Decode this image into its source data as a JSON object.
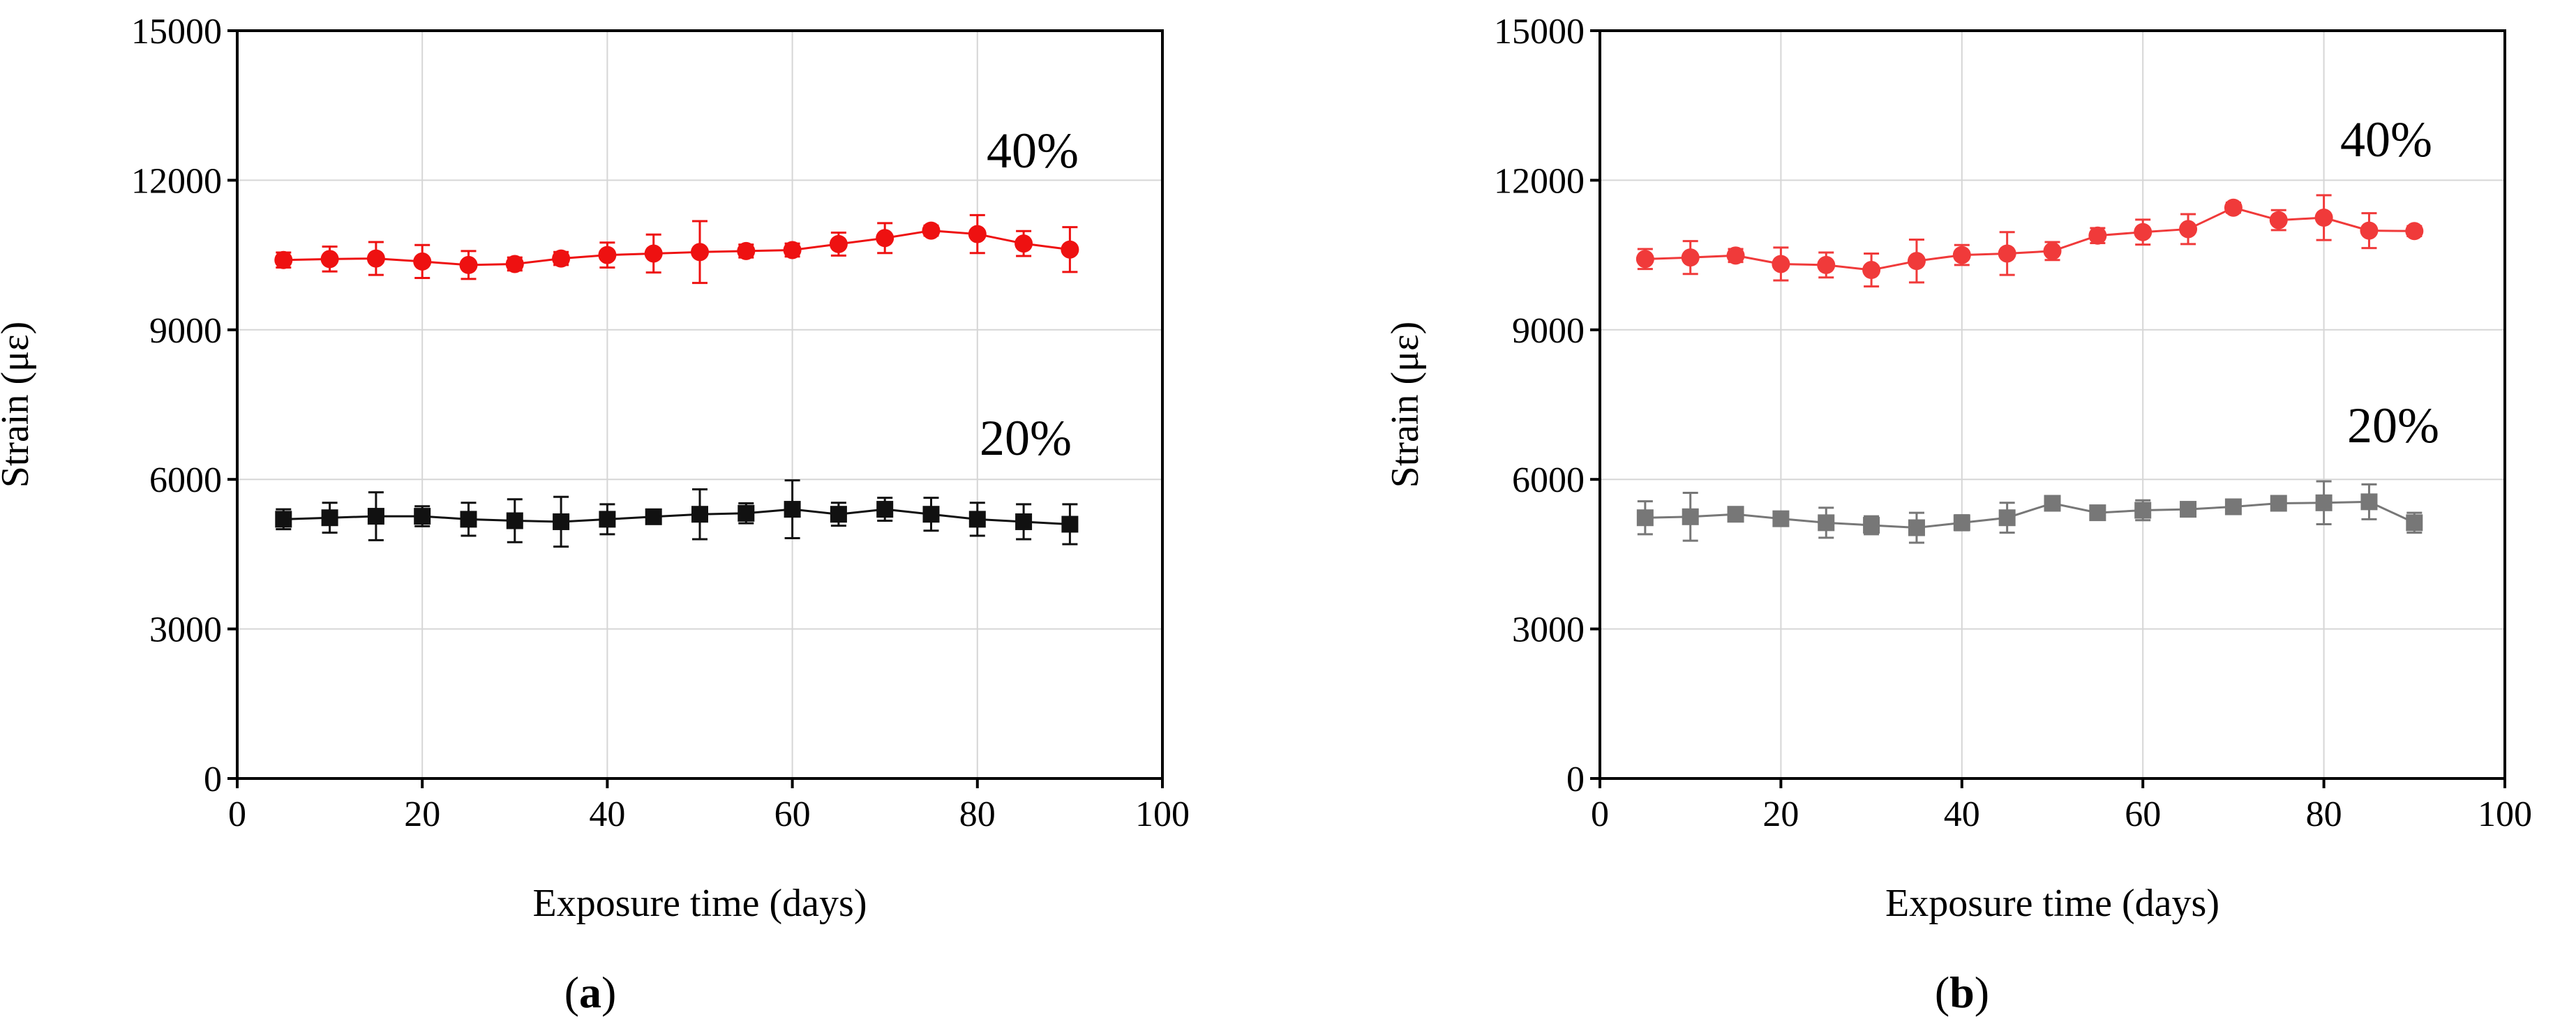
{
  "chart_data": [
    {
      "type": "line",
      "panel_label": "a",
      "xlabel": "Exposure time (days)",
      "ylabel": "Strain (με)",
      "xlim": [
        0,
        100
      ],
      "ylim": [
        0,
        15000
      ],
      "xticks": [
        "0",
        "20",
        "40",
        "60",
        "80",
        "100"
      ],
      "yticks": [
        "0",
        "3000",
        "6000",
        "9000",
        "12000",
        "15000"
      ],
      "grid": true,
      "series": [
        {
          "name": "40%",
          "color": "#ee1111",
          "marker": "circle",
          "x": [
            5,
            10,
            15,
            20,
            25,
            30,
            35,
            40,
            45,
            50,
            55,
            60,
            65,
            70,
            75,
            80,
            85,
            90
          ],
          "values": [
            10400,
            10420,
            10430,
            10370,
            10300,
            10320,
            10430,
            10500,
            10530,
            10560,
            10580,
            10600,
            10720,
            10840,
            10990,
            10920,
            10730,
            10610
          ],
          "errors": [
            150,
            250,
            330,
            330,
            280,
            130,
            130,
            250,
            380,
            620,
            130,
            130,
            230,
            300,
            100,
            380,
            250,
            450
          ]
        },
        {
          "name": "20%",
          "color": "#111111",
          "marker": "square",
          "x": [
            5,
            10,
            15,
            20,
            25,
            30,
            35,
            40,
            45,
            50,
            55,
            60,
            65,
            70,
            75,
            80,
            85,
            90
          ],
          "values": [
            5200,
            5230,
            5260,
            5260,
            5200,
            5170,
            5150,
            5200,
            5250,
            5300,
            5320,
            5400,
            5300,
            5400,
            5300,
            5200,
            5150,
            5100
          ],
          "errors": [
            200,
            300,
            480,
            200,
            330,
            430,
            500,
            300,
            100,
            500,
            200,
            580,
            230,
            230,
            330,
            330,
            350,
            400
          ]
        }
      ]
    },
    {
      "type": "line",
      "panel_label": "b",
      "xlabel": "Exposure time (days)",
      "ylabel": "Strain (με)",
      "xlim": [
        0,
        100
      ],
      "ylim": [
        0,
        15000
      ],
      "xticks": [
        "0",
        "20",
        "40",
        "60",
        "80",
        "100"
      ],
      "yticks": [
        "0",
        "3000",
        "6000",
        "9000",
        "12000",
        "15000"
      ],
      "grid": true,
      "series": [
        {
          "name": "40%",
          "color": "#f03a3a",
          "marker": "circle",
          "x": [
            5,
            10,
            15,
            20,
            25,
            30,
            35,
            40,
            45,
            50,
            55,
            60,
            65,
            70,
            75,
            80,
            85,
            90
          ],
          "values": [
            10420,
            10450,
            10490,
            10320,
            10300,
            10200,
            10380,
            10500,
            10530,
            10580,
            10890,
            10960,
            11020,
            11450,
            11200,
            11250,
            10990,
            10980
          ],
          "errors": [
            200,
            330,
            130,
            330,
            250,
            330,
            430,
            200,
            430,
            180,
            150,
            250,
            300,
            100,
            200,
            450,
            350,
            100
          ]
        },
        {
          "name": "20%",
          "color": "#777777",
          "marker": "square",
          "x": [
            5,
            10,
            15,
            20,
            25,
            30,
            35,
            40,
            45,
            50,
            55,
            60,
            65,
            70,
            75,
            80,
            85,
            90
          ],
          "values": [
            5230,
            5250,
            5300,
            5210,
            5130,
            5080,
            5030,
            5130,
            5230,
            5520,
            5330,
            5380,
            5400,
            5450,
            5520,
            5530,
            5550,
            5130
          ],
          "errors": [
            330,
            480,
            100,
            100,
            300,
            180,
            300,
            150,
            300,
            100,
            100,
            200,
            130,
            100,
            100,
            430,
            350,
            200
          ]
        }
      ]
    }
  ]
}
